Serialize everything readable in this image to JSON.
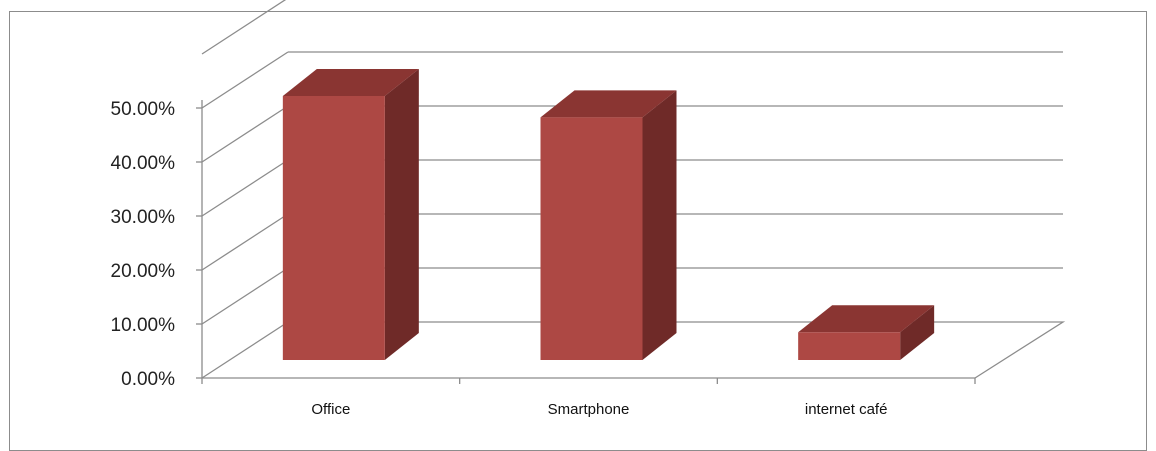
{
  "chart_data": {
    "type": "bar",
    "style": "3d-column",
    "categories": [
      "Office",
      "Smartphone",
      "internet café"
    ],
    "series": [
      {
        "values": [
          0.495,
          0.455,
          0.052
        ]
      }
    ],
    "y_ticks": [
      "0.00%",
      "10.00%",
      "20.00%",
      "30.00%",
      "40.00%",
      "50.00%"
    ],
    "ylim": [
      0,
      0.5
    ],
    "grid": true,
    "legend": "none",
    "colors": {
      "front": "#ad4844",
      "side": "#6f2a28",
      "top": "#8a3532",
      "grid": "#8c8c8c"
    }
  }
}
